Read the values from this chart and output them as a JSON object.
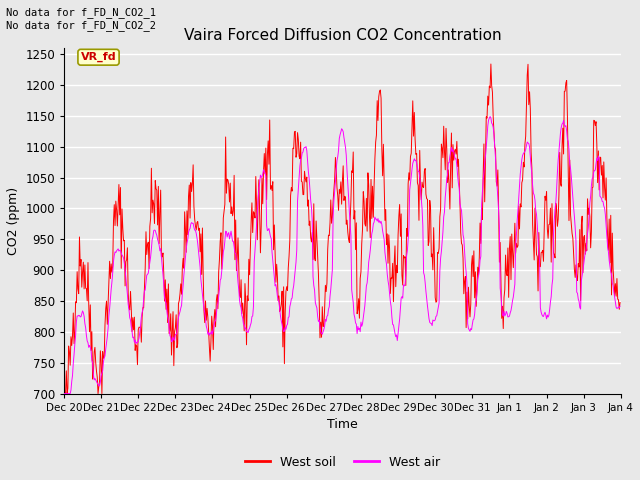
{
  "title": "Vaira Forced Diffusion CO2 Concentration",
  "xlabel": "Time",
  "ylabel": "CO2 (ppm)",
  "ylim": [
    700,
    1260
  ],
  "background_color": "#e8e8e8",
  "plot_bg_color": "#e8e8e8",
  "grid_color": "white",
  "annotation_text": "No data for f_FD_N_CO2_1\nNo data for f_FD_N_CO2_2",
  "annotation_box_text": "VR_fd",
  "annotation_box_color": "#ffffcc",
  "annotation_box_edge_color": "#999900",
  "annotation_text_color": "#cc0000",
  "west_soil_color": "#ff0000",
  "west_air_color": "#ff00ff",
  "legend_labels": [
    "West soil",
    "West air"
  ],
  "xtick_labels": [
    "Dec 20",
    "Dec 21",
    "Dec 22",
    "Dec 23",
    "Dec 24",
    "Dec 25",
    "Dec 26",
    "Dec 27",
    "Dec 28",
    "Dec 29",
    "Dec 30",
    "Dec 31",
    "Jan 1",
    "Jan 2",
    "Jan 3",
    "Jan 4"
  ],
  "ytick_values": [
    700,
    750,
    800,
    850,
    900,
    950,
    1000,
    1050,
    1100,
    1150,
    1200,
    1250
  ],
  "n_days": 15,
  "seed": 42
}
